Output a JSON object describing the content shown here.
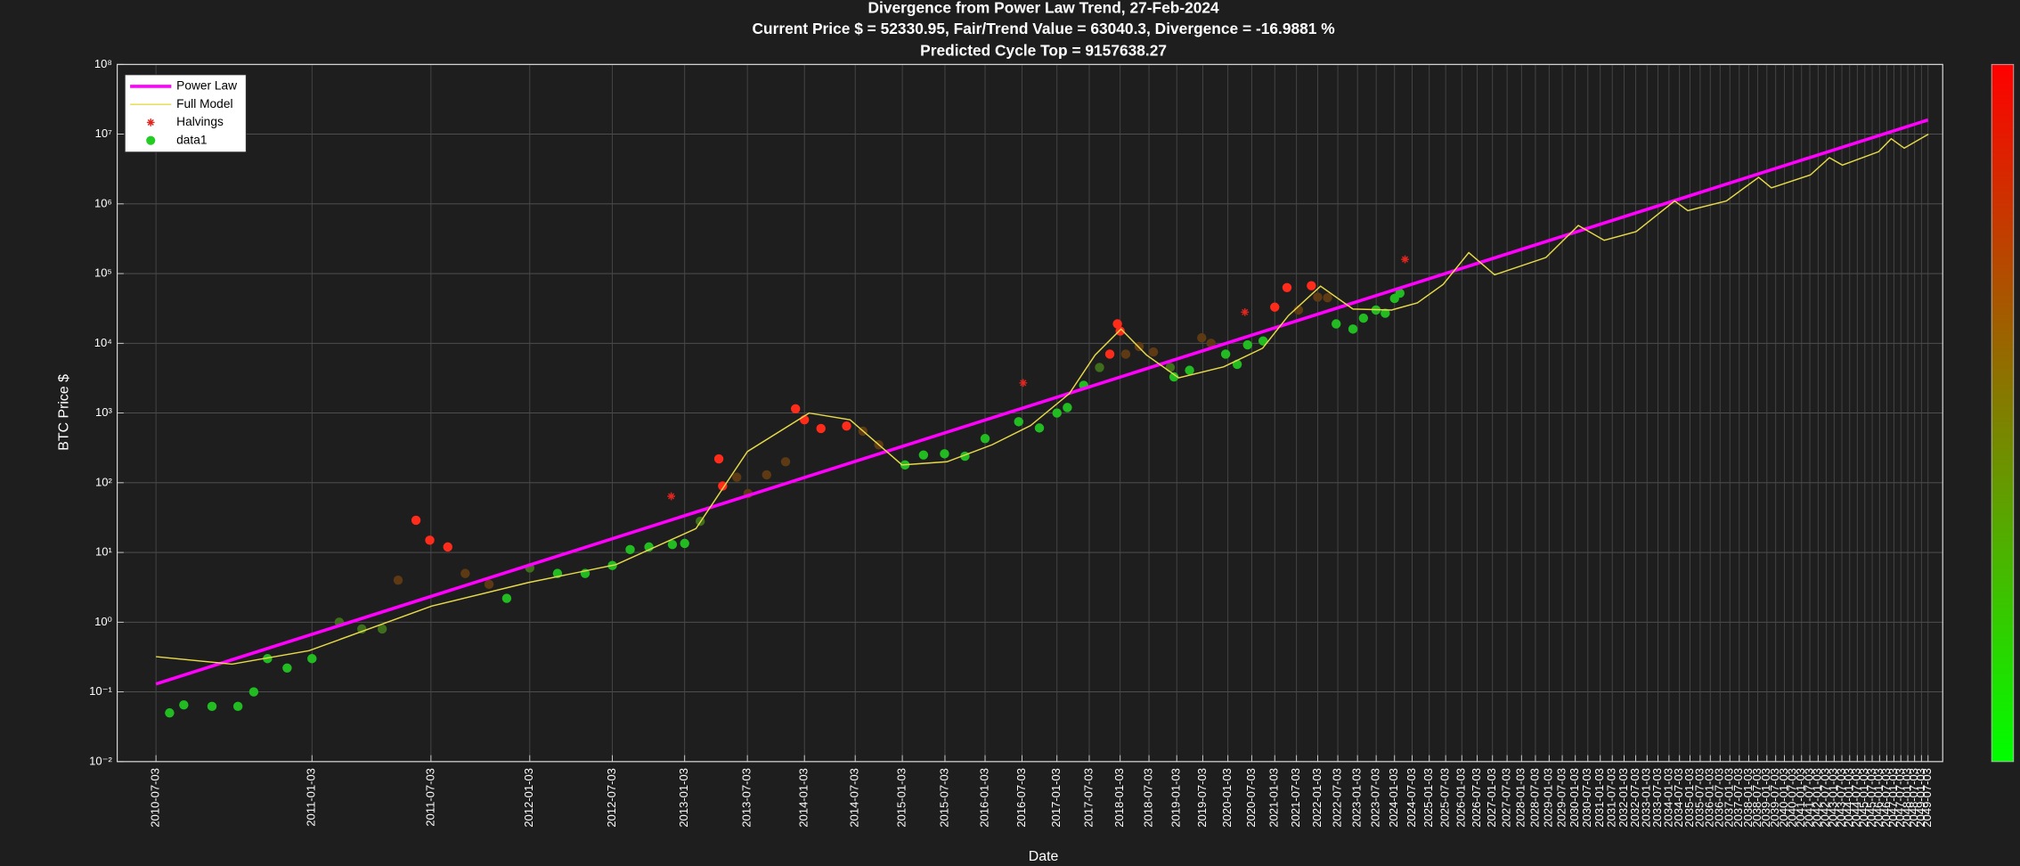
{
  "chart_data": {
    "type": "line",
    "title": "Divergence from Power Law Trend, 27-Feb-2024",
    "subtitle": "Current Price $ = 52330.95, Fair/Trend Value = 63040.3, Divergence = -16.9881 %",
    "subtitle2": "Predicted Cycle Top = 9157638.27",
    "xlabel": "Date",
    "ylabel": "BTC Price $",
    "xscale": "log",
    "yscale": "log",
    "grid": true,
    "legend": "northwest",
    "colorbar": [
      "#ff0000",
      "#00ff00"
    ],
    "xlim": [
      508,
      15200
    ],
    "ylim": [
      0.01,
      100000000
    ],
    "yticks": [
      {
        "value": 0.01,
        "label": "10⁻²"
      },
      {
        "value": 0.1,
        "label": "10⁻¹"
      },
      {
        "value": 1,
        "label": "10⁰"
      },
      {
        "value": 10,
        "label": "10¹"
      },
      {
        "value": 100,
        "label": "10²"
      },
      {
        "value": 1000,
        "label": "10³"
      },
      {
        "value": 10000,
        "label": "10⁴"
      },
      {
        "value": 100000,
        "label": "10⁵"
      },
      {
        "value": 1000000,
        "label": "10⁶"
      },
      {
        "value": 10000000,
        "label": "10⁷"
      },
      {
        "value": 100000000,
        "label": "10⁸"
      }
    ],
    "xticks": [
      {
        "value": 546,
        "label": "2010-07-03"
      },
      {
        "value": 730,
        "label": "2011-01-03"
      },
      {
        "value": 911,
        "label": "2011-07-03"
      },
      {
        "value": 1095,
        "label": "2012-01-03"
      },
      {
        "value": 1277,
        "label": "2012-07-03"
      },
      {
        "value": 1461,
        "label": "2013-01-03"
      },
      {
        "value": 1642,
        "label": "2013-07-03"
      },
      {
        "value": 1826,
        "label": "2014-01-03"
      },
      {
        "value": 2007,
        "label": "2014-07-03"
      },
      {
        "value": 2191,
        "label": "2015-01-03"
      },
      {
        "value": 2372,
        "label": "2015-07-03"
      },
      {
        "value": 2556,
        "label": "2016-01-03"
      },
      {
        "value": 2738,
        "label": "2016-07-03"
      },
      {
        "value": 2922,
        "label": "2017-01-03"
      },
      {
        "value": 3103,
        "label": "2017-07-03"
      },
      {
        "value": 3287,
        "label": "2018-01-03"
      },
      {
        "value": 3468,
        "label": "2018-07-03"
      },
      {
        "value": 3652,
        "label": "2019-01-03"
      },
      {
        "value": 3833,
        "label": "2019-07-03"
      },
      {
        "value": 4017,
        "label": "2020-01-03"
      },
      {
        "value": 4199,
        "label": "2020-07-03"
      },
      {
        "value": 4383,
        "label": "2021-01-03"
      },
      {
        "value": 4564,
        "label": "2021-07-03"
      },
      {
        "value": 4748,
        "label": "2022-01-03"
      },
      {
        "value": 4929,
        "label": "2022-07-03"
      },
      {
        "value": 5113,
        "label": "2023-01-03"
      },
      {
        "value": 5294,
        "label": "2023-07-03"
      },
      {
        "value": 5478,
        "label": "2024-01-03"
      },
      {
        "value": 5660,
        "label": "2024-07-03"
      },
      {
        "value": 5844,
        "label": "2025-01-03"
      },
      {
        "value": 6025,
        "label": "2025-07-03"
      },
      {
        "value": 6209,
        "label": "2026-01-03"
      },
      {
        "value": 6390,
        "label": "2026-07-03"
      },
      {
        "value": 6574,
        "label": "2027-01-03"
      },
      {
        "value": 6755,
        "label": "2027-07-03"
      },
      {
        "value": 6939,
        "label": "2028-01-03"
      },
      {
        "value": 7121,
        "label": "2028-07-03"
      },
      {
        "value": 7305,
        "label": "2029-01-03"
      },
      {
        "value": 7486,
        "label": "2029-07-03"
      },
      {
        "value": 7670,
        "label": "2030-01-03"
      },
      {
        "value": 7851,
        "label": "2030-07-03"
      },
      {
        "value": 8035,
        "label": "2031-01-03"
      },
      {
        "value": 8216,
        "label": "2031-07-03"
      },
      {
        "value": 8400,
        "label": "2032-01-03"
      },
      {
        "value": 8582,
        "label": "2032-07-03"
      },
      {
        "value": 8766,
        "label": "2033-01-03"
      },
      {
        "value": 8947,
        "label": "2033-07-03"
      },
      {
        "value": 9131,
        "label": "2034-01-03"
      },
      {
        "value": 9312,
        "label": "2034-07-03"
      },
      {
        "value": 9496,
        "label": "2035-01-03"
      },
      {
        "value": 9677,
        "label": "2035-07-03"
      },
      {
        "value": 9861,
        "label": "2036-01-03"
      },
      {
        "value": 10043,
        "label": "2036-07-03"
      },
      {
        "value": 10227,
        "label": "2037-01-03"
      },
      {
        "value": 10408,
        "label": "2037-07-03"
      },
      {
        "value": 10592,
        "label": "2038-01-03"
      },
      {
        "value": 10773,
        "label": "2038-07-03"
      },
      {
        "value": 10957,
        "label": "2039-01-03"
      },
      {
        "value": 11138,
        "label": "2039-07-03"
      },
      {
        "value": 11322,
        "label": "2040-01-03"
      },
      {
        "value": 11504,
        "label": "2040-07-03"
      },
      {
        "value": 11688,
        "label": "2041-01-03"
      },
      {
        "value": 11869,
        "label": "2041-07-03"
      },
      {
        "value": 12053,
        "label": "2042-01-03"
      },
      {
        "value": 12234,
        "label": "2042-07-03"
      },
      {
        "value": 12418,
        "label": "2043-01-03"
      },
      {
        "value": 12599,
        "label": "2043-07-03"
      },
      {
        "value": 12783,
        "label": "2044-01-03"
      },
      {
        "value": 12965,
        "label": "2044-07-03"
      },
      {
        "value": 13149,
        "label": "2045-01-03"
      },
      {
        "value": 13330,
        "label": "2045-07-03"
      },
      {
        "value": 13514,
        "label": "2046-01-03"
      },
      {
        "value": 13695,
        "label": "2046-07-03"
      },
      {
        "value": 13879,
        "label": "2047-01-03"
      },
      {
        "value": 14060,
        "label": "2047-07-03"
      },
      {
        "value": 14244,
        "label": "2048-01-03"
      },
      {
        "value": 14426,
        "label": "2048-07-03"
      },
      {
        "value": 14610,
        "label": "2049-01-03"
      },
      {
        "value": 14791,
        "label": "2049-07-03"
      }
    ],
    "series": [
      {
        "name": "Power Law",
        "type": "line",
        "color": "#ff00ff",
        "x": [
          546,
          14791
        ],
        "values": [
          0.13,
          16000000
        ]
      },
      {
        "name": "Full Model",
        "type": "line",
        "color": "#e6d94a",
        "x": [
          546,
          629,
          726,
          912,
          1092,
          1286,
          1492,
          1642,
          1842,
          1988,
          2190,
          2381,
          2589,
          2782,
          2990,
          3137,
          3292,
          3452,
          3665,
          3986,
          4285,
          4496,
          4773,
          5070,
          5447,
          5716,
          5997,
          6290,
          6600,
          7262,
          7713,
          8094,
          8590,
          9228,
          9457,
          10160,
          10790,
          11050,
          11880,
          12310,
          12610,
          13490,
          13810,
          14150,
          14800
        ],
        "values": [
          0.32,
          0.25,
          0.39,
          1.7,
          3.7,
          6.7,
          22,
          280,
          1000,
          800,
          180,
          200,
          350,
          660,
          1900,
          6800,
          16000,
          6800,
          3200,
          4600,
          8500,
          25000,
          66000,
          31000,
          30000,
          38000,
          70000,
          200000,
          96000,
          170000,
          490000,
          300000,
          400000,
          1100000,
          800000,
          1100000,
          2400000,
          1700000,
          2600000,
          4600000,
          3600000,
          5600000,
          8600000,
          6300000,
          10000000
        ]
      },
      {
        "name": "Halvings",
        "type": "scatter",
        "marker": "asterisk",
        "color": "#e0261f",
        "x": [
          1425,
          2744,
          4146,
          5586
        ],
        "values": [
          64,
          2700,
          28000,
          160000
        ]
      },
      {
        "name": "data1",
        "type": "scatter",
        "marker": "dot",
        "color": "#22cc22",
        "x": [
          560,
          575,
          606,
          636,
          655,
          672,
          697,
          730,
          768,
          801,
          832,
          857,
          886,
          909,
          940,
          971,
          1015,
          1049,
          1095,
          1153,
          1214,
          1277,
          1320,
          1367,
          1428,
          1461,
          1504,
          1557,
          1568,
          1610,
          1644,
          1702,
          1763,
          1796,
          1826,
          1883,
          1975,
          2036,
          2097,
          2202,
          2279,
          2370,
          2462,
          2556,
          2721,
          2828,
          2922,
          2979,
          3071,
          3163,
          3224,
          3270,
          3287,
          3321,
          3405,
          3497,
          3608,
          3633,
          3740,
          3826,
          3893,
          4000,
          4087,
          4167,
          4289,
          4383,
          4484,
          4581,
          4692,
          4748,
          4836,
          4914,
          5070,
          5170,
          5292,
          5384,
          5478,
          5533
        ],
        "values": [
          0.05,
          0.065,
          0.062,
          0.062,
          0.1,
          0.3,
          0.22,
          0.3,
          1.0,
          0.8,
          0.8,
          4,
          29,
          15,
          12,
          5,
          3.5,
          2.2,
          6,
          5,
          5,
          6.5,
          11,
          12,
          13,
          13.5,
          28,
          220,
          90,
          120,
          70,
          130,
          200,
          1150,
          800,
          600,
          650,
          550,
          350,
          180,
          250,
          260,
          240,
          430,
          750,
          610,
          1000,
          1200,
          2500,
          4500,
          7000,
          19000,
          15000,
          7000,
          9000,
          7500,
          4500,
          3300,
          4100,
          12000,
          10000,
          7000,
          5000,
          9500,
          10800,
          33000,
          63000,
          30000,
          67000,
          46000,
          45000,
          19000,
          16000,
          23000,
          30000,
          27000,
          44000,
          52330.95
        ],
        "colors": [
          "#22bb22",
          "#22bb22",
          "#22bb22",
          "#22bb22",
          "#22bb22",
          "#22bb22",
          "#22bb22",
          "#22bb22",
          "#3f6e1c",
          "#3f6e1c",
          "#3f6e1c",
          "#5e3a14",
          "#ff2b1b",
          "#ff2b1b",
          "#ff2b1b",
          "#5e3a14",
          "#5e3a14",
          "#22bb22",
          "#3f6e1c",
          "#22bb22",
          "#22bb22",
          "#22bb22",
          "#22bb22",
          "#22bb22",
          "#22bb22",
          "#22bb22",
          "#3f6e1c",
          "#ff2b1b",
          "#ff2b1b",
          "#5e3a14",
          "#5e3a14",
          "#5e3a14",
          "#5e3a14",
          "#ff2b1b",
          "#ff2b1b",
          "#ff2b1b",
          "#ff2b1b",
          "#5e3a14",
          "#5e3a14",
          "#22bb22",
          "#22bb22",
          "#22bb22",
          "#22bb22",
          "#22bb22",
          "#22bb22",
          "#22bb22",
          "#22bb22",
          "#22bb22",
          "#22bb22",
          "#3f6e1c",
          "#ff2b1b",
          "#ff2b1b",
          "#ff2b1b",
          "#5e3a14",
          "#5e3a14",
          "#5e3a14",
          "#3f6e1c",
          "#22bb22",
          "#22bb22",
          "#5e3a14",
          "#5e3a14",
          "#22bb22",
          "#22bb22",
          "#22bb22",
          "#22bb22",
          "#ff2b1b",
          "#ff2b1b",
          "#5e3a14",
          "#ff2b1b",
          "#5e3a14",
          "#5e3a14",
          "#22bb22",
          "#22bb22",
          "#22bb22",
          "#22bb22",
          "#22bb22",
          "#22bb22",
          "#22bb22"
        ]
      }
    ]
  }
}
